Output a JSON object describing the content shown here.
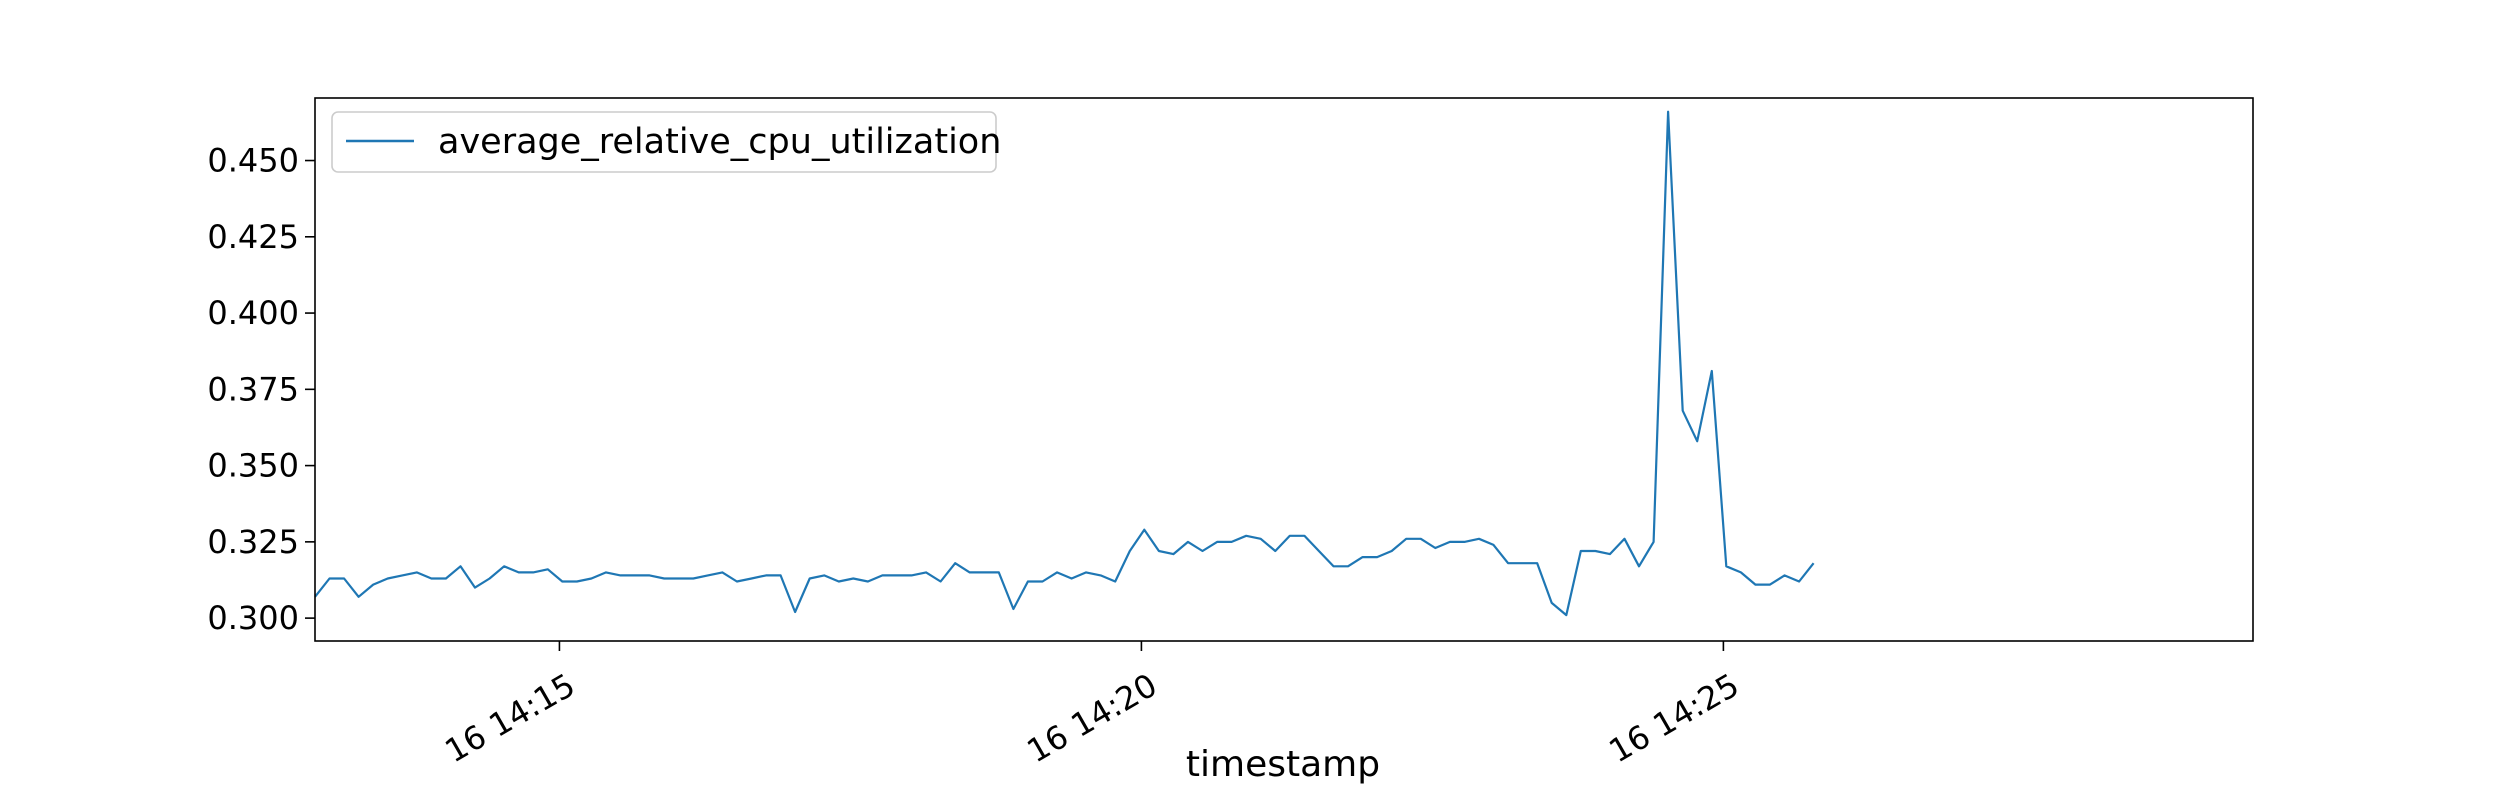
{
  "chart_data": {
    "type": "line",
    "xlabel": "timestamp",
    "ylabel": "",
    "title": "",
    "x_date_prefix": "16",
    "x_start": "14:12:54",
    "x_step_seconds": 7.5,
    "xlim": [
      "14:12:54",
      "14:29:33"
    ],
    "ylim": [
      0.2925,
      0.4705
    ],
    "yticks": [
      0.3,
      0.325,
      0.35,
      0.375,
      0.4,
      0.425,
      0.45
    ],
    "ytick_labels": [
      "0.300",
      "0.325",
      "0.350",
      "0.375",
      "0.400",
      "0.425",
      "0.450"
    ],
    "xticks": [
      "14:15",
      "14:20",
      "14:25"
    ],
    "xtick_labels": [
      "16 14:15",
      "16 14:20",
      "16 14:25"
    ],
    "grid": false,
    "legend_position": "top-left",
    "series": [
      {
        "name": "average_relative_cpu_utilization",
        "color": "#1f77b4",
        "values": [
          0.307,
          0.313,
          0.313,
          0.307,
          0.311,
          0.313,
          0.314,
          0.315,
          0.313,
          0.313,
          0.317,
          0.31,
          0.313,
          0.317,
          0.315,
          0.315,
          0.316,
          0.312,
          0.312,
          0.313,
          0.315,
          0.314,
          0.314,
          0.314,
          0.313,
          0.313,
          0.313,
          0.314,
          0.315,
          0.312,
          0.313,
          0.314,
          0.314,
          0.302,
          0.313,
          0.314,
          0.312,
          0.313,
          0.312,
          0.314,
          0.314,
          0.314,
          0.315,
          0.312,
          0.318,
          0.315,
          0.315,
          0.315,
          0.303,
          0.312,
          0.312,
          0.315,
          0.313,
          0.315,
          0.314,
          0.312,
          0.322,
          0.329,
          0.322,
          0.321,
          0.325,
          0.322,
          0.325,
          0.325,
          0.327,
          0.326,
          0.322,
          0.327,
          0.327,
          0.322,
          0.317,
          0.317,
          0.32,
          0.32,
          0.322,
          0.326,
          0.326,
          0.323,
          0.325,
          0.325,
          0.326,
          0.324,
          0.318,
          0.318,
          0.318,
          0.305,
          0.301,
          0.322,
          0.322,
          0.321,
          0.326,
          0.317,
          0.325,
          0.466,
          0.368,
          0.358,
          0.381,
          0.317,
          0.315,
          0.311,
          0.311,
          0.314,
          0.312,
          0.318
        ]
      }
    ]
  }
}
